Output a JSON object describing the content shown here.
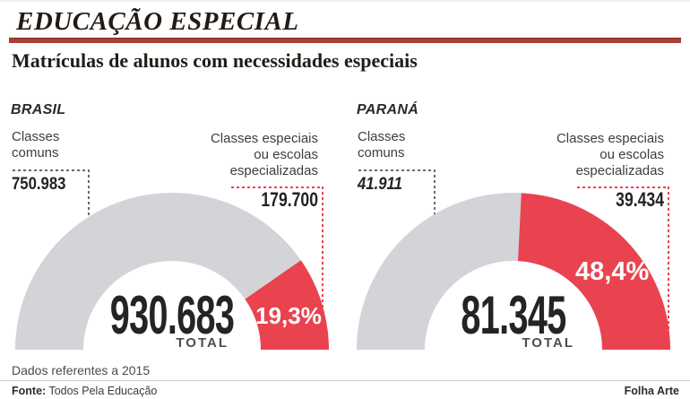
{
  "page": {
    "kicker": "EDUCAÇÃO ESPECIAL",
    "title": "Matrículas de alunos com necessidades especiais",
    "colors": {
      "accent_red": "#e94350",
      "rule_red": "#a84036",
      "arc_gray": "#d3d4d8",
      "leader_gray": "#6b6b6b"
    }
  },
  "footer": {
    "note": "Dados referentes a 2015",
    "source_label": "Fonte:",
    "source_text": "Todos Pela Educação",
    "credit": "Folha Arte"
  },
  "chart_data": [
    {
      "type": "donut",
      "shape": "half-donut-gauge",
      "region": "BRASIL",
      "categories": [
        "Classes comuns",
        "Classes especiais ou escolas especializadas"
      ],
      "labels": {
        "common": [
          "Classes",
          "comuns"
        ],
        "special": [
          "Classes especiais",
          "ou escolas",
          "especializadas"
        ]
      },
      "values": [
        750983,
        179700
      ],
      "value_displays": [
        "750.983",
        "179.700"
      ],
      "special_pct": 19.3,
      "special_pct_display": "19,3%",
      "total": 930683,
      "total_display": "930.683",
      "total_label": "TOTAL",
      "segment_colors": [
        "#d3d4d8",
        "#e94350"
      ]
    },
    {
      "type": "donut",
      "shape": "half-donut-gauge",
      "region": "PARANÁ",
      "categories": [
        "Classes comuns",
        "Classes especiais ou escolas especializadas"
      ],
      "labels": {
        "common": [
          "Classes",
          "comuns"
        ],
        "special": [
          "Classes especiais",
          "ou escolas",
          "especializadas"
        ]
      },
      "values": [
        41911,
        39434
      ],
      "value_displays": [
        "41.911",
        "39.434"
      ],
      "special_pct": 48.4,
      "special_pct_display": "48,4%",
      "total": 81345,
      "total_display": "81.345",
      "total_label": "TOTAL",
      "segment_colors": [
        "#d3d4d8",
        "#e94350"
      ]
    }
  ]
}
